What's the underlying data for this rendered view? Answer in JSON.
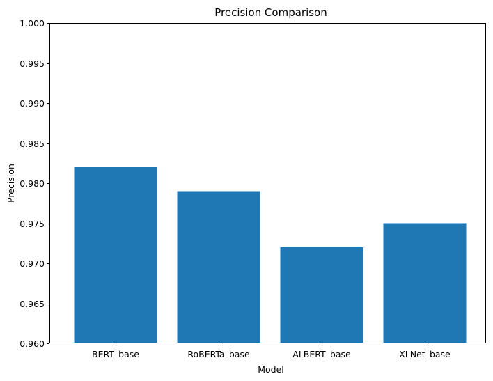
{
  "chart_data": {
    "type": "bar",
    "title": "Precision Comparison",
    "xlabel": "Model",
    "ylabel": "Precision",
    "categories": [
      "BERT_base",
      "RoBERTa_base",
      "ALBERT_base",
      "XLNet_base"
    ],
    "values": [
      0.982,
      0.979,
      0.972,
      0.975
    ],
    "ylim": [
      0.96,
      1.0
    ],
    "yticks": [
      "0.960",
      "0.965",
      "0.970",
      "0.975",
      "0.980",
      "0.985",
      "0.990",
      "0.995",
      "1.000"
    ],
    "bar_color": "#1f77b4",
    "grid": false
  }
}
